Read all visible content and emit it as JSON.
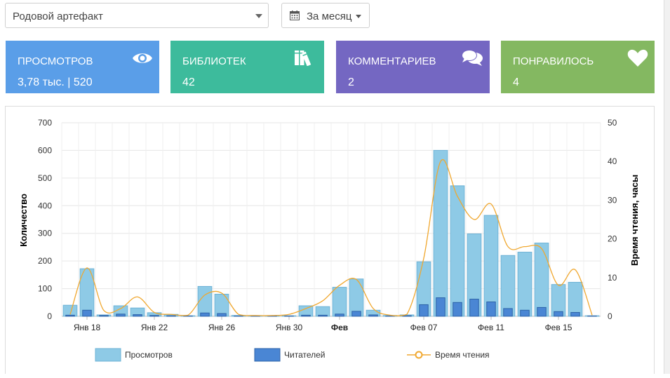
{
  "filters": {
    "artifact_select": "Родовой артефакт",
    "period_select": "За месяц"
  },
  "cards": [
    {
      "label": "ПРОСМОТРОВ",
      "value": "3,78 тыс. | 520",
      "color": "#5a9ee8",
      "icon": "eye-icon"
    },
    {
      "label": "БИБЛИОТЕК",
      "value": "42",
      "color": "#3dbb9c",
      "icon": "books-icon"
    },
    {
      "label": "КОММЕНТАРИЕВ",
      "value": "2",
      "color": "#7467c2",
      "icon": "comments-icon"
    },
    {
      "label": "ПОНРАВИЛОСЬ",
      "value": "4",
      "color": "#84b861",
      "icon": "heart-icon"
    }
  ],
  "chart_data": {
    "type": "bar",
    "ylabel": "Количество",
    "y2label": "Время чтения, часы",
    "ylim": [
      0,
      700
    ],
    "y2lim": [
      0,
      50
    ],
    "yticks": [
      "0",
      "100",
      "200",
      "300",
      "400",
      "500",
      "600",
      "700"
    ],
    "y2ticks": [
      "0",
      "10",
      "20",
      "30",
      "40",
      "50"
    ],
    "xtick_labels": [
      "Янв 18",
      "Янв 22",
      "Янв 26",
      "Янв 30",
      "Фев",
      "Фев 07",
      "Фев 11",
      "Фев 15"
    ],
    "categories": [
      "Янв 17",
      "Янв 18",
      "Янв 19",
      "Янв 20",
      "Янв 21",
      "Янв 22",
      "Янв 23",
      "Янв 24",
      "Янв 25",
      "Янв 26",
      "Янв 27",
      "Янв 28",
      "Янв 29",
      "Янв 30",
      "Янв 31",
      "Фев 01",
      "Фев 02",
      "Фев 03",
      "Фев 04",
      "Фев 05",
      "Фев 06",
      "Фев 07",
      "Фев 08",
      "Фев 09",
      "Фев 10",
      "Фев 11",
      "Фев 12",
      "Фев 13",
      "Фев 14",
      "Фев 15",
      "Фев 16",
      "Фев 17"
    ],
    "series": [
      {
        "name": "Просмотров",
        "kind": "bar",
        "color": "#8ecae6",
        "values": [
          40,
          172,
          5,
          38,
          30,
          13,
          7,
          2,
          108,
          80,
          3,
          2,
          2,
          2,
          38,
          35,
          105,
          135,
          22,
          3,
          5,
          197,
          600,
          472,
          298,
          365,
          220,
          232,
          265,
          115,
          123,
          2
        ]
      },
      {
        "name": "Читателей",
        "kind": "bar",
        "color": "#4a86d4",
        "values": [
          4,
          22,
          3,
          8,
          6,
          3,
          2,
          1,
          12,
          10,
          1,
          1,
          1,
          1,
          4,
          4,
          8,
          18,
          5,
          1,
          2,
          42,
          67,
          50,
          62,
          52,
          28,
          22,
          32,
          17,
          14,
          1
        ]
      },
      {
        "name": "Время чтения",
        "kind": "line",
        "axis": "right",
        "color": "#f0a830",
        "values": [
          0.5,
          12.5,
          1.5,
          2,
          5,
          1,
          0.5,
          0.3,
          5.5,
          6,
          0.5,
          0.2,
          0.2,
          0.5,
          2,
          4,
          8,
          9.5,
          2,
          0.3,
          0.5,
          15,
          40,
          31,
          25,
          29,
          18,
          18,
          17.5,
          8,
          12,
          0.3
        ]
      }
    ],
    "grid": true,
    "legend": "bottom"
  }
}
